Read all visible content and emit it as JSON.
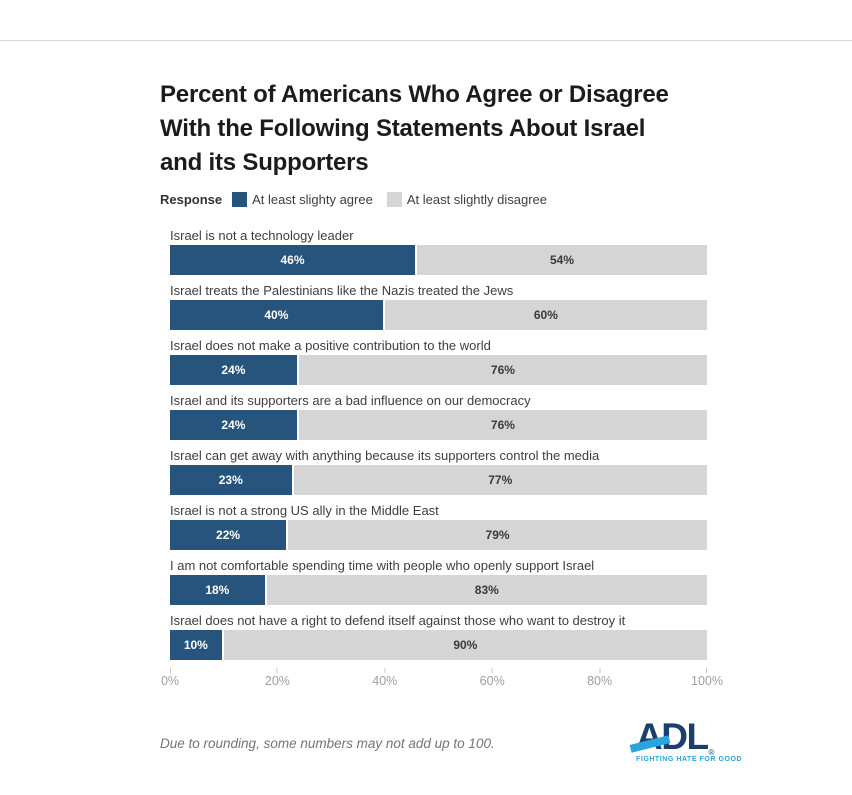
{
  "page": {
    "title_lines": [
      "Percent of Americans Who Agree or Disagree",
      "With the Following Statements About Israel",
      "and its Supporters"
    ],
    "footnote": "Due to rounding, some numbers may not add up to 100."
  },
  "legend": {
    "label": "Response",
    "items": [
      {
        "label": "At least slighty agree",
        "color": "#26547D"
      },
      {
        "label": "At least slightly disagree",
        "color": "#D5D5D5"
      }
    ]
  },
  "chart_data": {
    "type": "bar",
    "orientation": "horizontal",
    "stacked": true,
    "title": "Percent of Americans Who Agree or Disagree With the Following Statements About Israel and its Supporters",
    "categories": [
      "Israel is not a technology leader",
      "Israel treats the Palestinians like the Nazis treated the Jews",
      "Israel does not make a positive contribution to the world",
      "Israel and its supporters are a bad influence on our democracy",
      "Israel can get away with anything because its supporters control the media",
      "Israel is not a strong US ally in the Middle East",
      "I am not comfortable spending time with people who openly support Israel",
      "Israel does not have a right to defend itself against those who want to destroy it"
    ],
    "series": [
      {
        "name": "At least slighty agree",
        "color": "#26547D",
        "values": [
          46,
          40,
          24,
          24,
          23,
          22,
          18,
          10
        ],
        "labels": [
          "46%",
          "40%",
          "24%",
          "24%",
          "23%",
          "22%",
          "18%",
          "10%"
        ]
      },
      {
        "name": "At least slightly disagree",
        "color": "#D5D5D5",
        "values": [
          54,
          60,
          76,
          76,
          77,
          79,
          83,
          90
        ],
        "labels": [
          "54%",
          "60%",
          "76%",
          "76%",
          "77%",
          "79%",
          "83%",
          "90%"
        ]
      }
    ],
    "x_ticks": [
      "0%",
      "20%",
      "40%",
      "60%",
      "80%",
      "100%"
    ],
    "xlim": [
      0,
      100
    ],
    "grid": false,
    "legend_position": "top"
  },
  "logo": {
    "text": "ADL",
    "registered": "®",
    "tagline": "FIGHTING HATE FOR GOOD",
    "navy": "#1B3E6F",
    "light_blue": "#29A4DD"
  }
}
